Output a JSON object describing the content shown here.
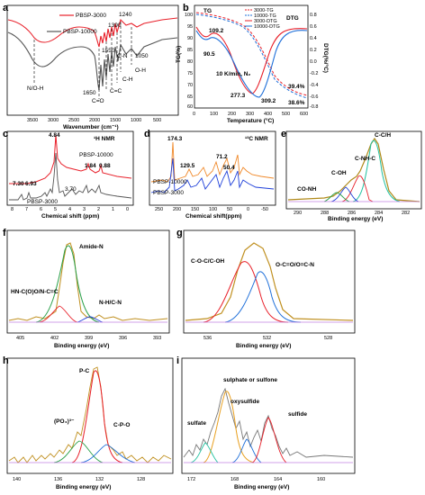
{
  "panels": {
    "a": {
      "label": "a",
      "xlabel": "Wavenumber (cm⁻¹)",
      "xticks": [
        "3500",
        "3000",
        "2500",
        "2000",
        "1500",
        "1000",
        "500"
      ],
      "legend": [
        "PBSP-3000",
        "PBSP-10000"
      ],
      "annotations": [
        "N/O-H",
        "1650",
        "C=O",
        "1550",
        "C=C",
        "1390",
        "1240",
        "C-H",
        "C-N",
        "1050",
        "O-H"
      ],
      "colors": {
        "pbsp3000": "#e8202a",
        "pbsp10000": "#555555"
      }
    },
    "b": {
      "label": "b",
      "xlabel": "Temperature (°C)",
      "ylabel_left": "TG(%)",
      "ylabel_right": "DTG(%/°C)",
      "xticks": [
        "0",
        "100",
        "200",
        "300",
        "400",
        "500",
        "600"
      ],
      "yticks_left": [
        "100",
        "95",
        "90",
        "85",
        "80",
        "75",
        "70",
        "65",
        "60"
      ],
      "yticks_right": [
        "0.8",
        "0.6",
        "0.4",
        "0.2",
        "0.0",
        "-0.2",
        "-0.4",
        "-0.6",
        "-0.8"
      ],
      "legend": [
        "3000-TG",
        "10000-TG",
        "3000-DTG",
        "10000-DTG"
      ],
      "annotations": {
        "tg": "TG",
        "dtg": "DTG",
        "t1": "109.2",
        "t2": "90.5",
        "cond": "10 K/min, N₂",
        "t3": "277.3",
        "t4": "309.2",
        "r1": "39.4%",
        "r2": "38.6%"
      },
      "colors": {
        "pbsp3000": "#e8202a",
        "pbsp10000": "#1e6fd9"
      }
    },
    "c": {
      "label": "c",
      "title": "¹H NMR",
      "xlabel": "Chemical shift (ppm)",
      "xticks": [
        "8",
        "7",
        "6",
        "5",
        "4",
        "3",
        "2",
        "1",
        "0"
      ],
      "legend": [
        "PBSP-10000",
        "PBSP-3000"
      ],
      "annotations": [
        "4.84",
        "7.30",
        "6.93",
        "3.70",
        "1.84",
        "0.88"
      ],
      "colors": {
        "pbsp10000": "#e8202a",
        "pbsp3000": "#555555"
      }
    },
    "d": {
      "label": "d",
      "title": "¹³C NMR",
      "xlabel": "Chemical shift(ppm)",
      "xticks": [
        "250",
        "200",
        "150",
        "100",
        "50",
        "0",
        "-50"
      ],
      "legend": [
        "PBSP-10000",
        "PBSP-3000"
      ],
      "annotations": [
        "174.3",
        "129.5",
        "71.2",
        "50.4"
      ],
      "colors": {
        "pbsp10000": "#f0892a",
        "pbsp3000": "#1e3fd9"
      }
    },
    "e": {
      "label": "e",
      "xlabel": "Binding energy (eV)",
      "xticks": [
        "290",
        "288",
        "286",
        "284",
        "282"
      ],
      "annotations": [
        "C-C/H",
        "C-NH-C",
        "C-OH",
        "CO-NH"
      ]
    },
    "f": {
      "label": "f",
      "xlabel": "Binding energy (eV)",
      "xticks": [
        "405",
        "402",
        "399",
        "396",
        "393"
      ],
      "annotations": [
        "Amide-N",
        "HN-C(O)O/N-C=C",
        "N-H/C-N"
      ]
    },
    "g": {
      "label": "g",
      "xlabel": "Binding energy (eV)",
      "xticks": [
        "536",
        "532",
        "528"
      ],
      "annotations": [
        "C-O-C/C-OH",
        "O-C=O/O=C-N"
      ]
    },
    "h": {
      "label": "h",
      "xlabel": "Binding energy (eV)",
      "xticks": [
        "140",
        "136",
        "132",
        "128"
      ],
      "annotations": [
        "P-C",
        "(PO₄)³⁻",
        "C-P-O"
      ]
    },
    "i": {
      "label": "i",
      "xlabel": "Binding energy (eV)",
      "xticks": [
        "172",
        "168",
        "164",
        "160"
      ],
      "annotations": [
        "sulphate or sulfone",
        "oxysulfide",
        "sulfide",
        "sulfate"
      ]
    }
  }
}
